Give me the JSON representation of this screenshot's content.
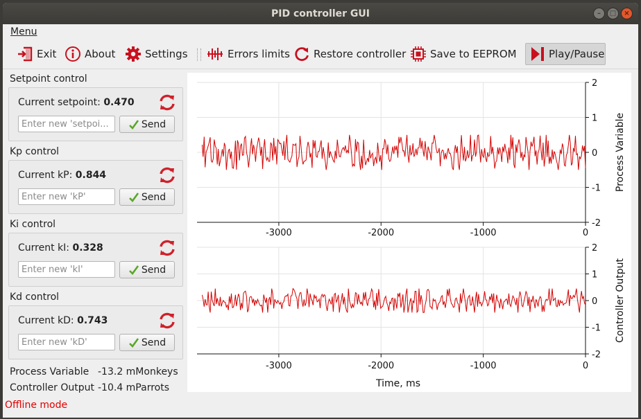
{
  "window": {
    "title": "PID controller GUI"
  },
  "menu": {
    "label": "Menu"
  },
  "toolbar": {
    "exit": "Exit",
    "about": "About",
    "settings": "Settings",
    "errors_limits": "Errors limits",
    "restore_controller": "Restore controller",
    "save_eeprom": "Save to EEPROM",
    "play_pause": "Play/Pause"
  },
  "controls": [
    {
      "title": "Setpoint control",
      "current_label": "Current setpoint:",
      "value": "0.470",
      "placeholder": "Enter new 'setpoi...",
      "send": "Send"
    },
    {
      "title": "Kp control",
      "current_label": "Current kP:",
      "value": "0.844",
      "placeholder": "Enter new 'kP'",
      "send": "Send"
    },
    {
      "title": "Ki control",
      "current_label": "Current kI:",
      "value": "0.328",
      "placeholder": "Enter new 'kI'",
      "send": "Send"
    },
    {
      "title": "Kd control",
      "current_label": "Current kD:",
      "value": "0.743",
      "placeholder": "Enter new 'kD'",
      "send": "Send"
    }
  ],
  "readouts": {
    "pv_label": "Process Variable",
    "pv_value": "-13.2 mMonkeys",
    "co_label": "Controller Output",
    "co_value": "-10.4 mParrots"
  },
  "status": {
    "text": "Offline mode"
  },
  "colors": {
    "trace": "#d40000",
    "refresh_icon": "#d0202a",
    "status": "#e00000"
  },
  "chart_data": [
    {
      "type": "line",
      "ylabel": "Process Variable",
      "xlabel": "",
      "xlim": [
        -3800,
        0
      ],
      "ylim": [
        -2,
        2
      ],
      "x_ticks": [
        "-3000",
        "-2000",
        "-1000",
        "0"
      ],
      "y_ticks": [
        "2",
        "1",
        "0",
        "-1",
        "-2"
      ],
      "grid": true,
      "series": [
        {
          "values_range": [
            -0.5,
            0.5
          ],
          "approx_mean": 0.0
        }
      ]
    },
    {
      "type": "line",
      "ylabel": "Controller Output",
      "xlabel": "Time, ms",
      "xlim": [
        -3800,
        0
      ],
      "ylim": [
        -2,
        2
      ],
      "x_ticks": [
        "-3000",
        "-2000",
        "-1000",
        "0"
      ],
      "y_ticks": [
        "2",
        "1",
        "0",
        "-1",
        "-2"
      ],
      "grid": true,
      "series": [
        {
          "values_range": [
            -0.45,
            0.45
          ],
          "approx_mean": 0.0
        }
      ]
    }
  ]
}
